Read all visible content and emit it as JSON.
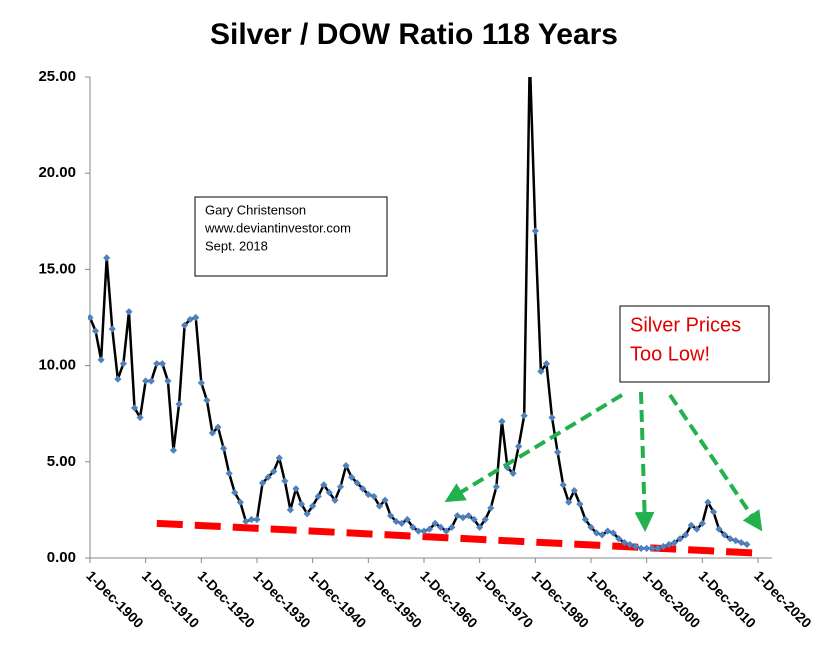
{
  "chart_data": {
    "type": "line",
    "title": "Silver / DOW Ratio 118 Years",
    "x": [
      "1900-12-01",
      "1901-12-01",
      "1902-12-01",
      "1903-12-01",
      "1904-12-01",
      "1905-12-01",
      "1906-12-01",
      "1907-12-01",
      "1908-12-01",
      "1909-12-01",
      "1910-12-01",
      "1911-12-01",
      "1912-12-01",
      "1913-12-01",
      "1914-12-01",
      "1915-12-01",
      "1916-12-01",
      "1917-12-01",
      "1918-12-01",
      "1919-12-01",
      "1920-12-01",
      "1921-12-01",
      "1922-12-01",
      "1923-12-01",
      "1924-12-01",
      "1925-12-01",
      "1926-12-01",
      "1927-12-01",
      "1928-12-01",
      "1929-12-01",
      "1930-12-01",
      "1931-12-01",
      "1932-12-01",
      "1933-12-01",
      "1934-12-01",
      "1935-12-01",
      "1936-12-01",
      "1937-12-01",
      "1938-12-01",
      "1939-12-01",
      "1940-12-01",
      "1941-12-01",
      "1942-12-01",
      "1943-12-01",
      "1944-12-01",
      "1945-12-01",
      "1946-12-01",
      "1947-12-01",
      "1948-12-01",
      "1949-12-01",
      "1950-12-01",
      "1951-12-01",
      "1952-12-01",
      "1953-12-01",
      "1954-12-01",
      "1955-12-01",
      "1956-12-01",
      "1957-12-01",
      "1958-12-01",
      "1959-12-01",
      "1960-12-01",
      "1961-12-01",
      "1962-12-01",
      "1963-12-01",
      "1964-12-01",
      "1965-12-01",
      "1966-12-01",
      "1967-12-01",
      "1968-12-01",
      "1969-12-01",
      "1970-12-01",
      "1971-12-01",
      "1972-12-01",
      "1973-12-01",
      "1974-12-01",
      "1975-12-01",
      "1976-12-01",
      "1977-12-01",
      "1978-12-01",
      "1979-12-01",
      "1980-12-01",
      "1981-12-01",
      "1982-12-01",
      "1983-12-01",
      "1984-12-01",
      "1985-12-01",
      "1986-12-01",
      "1987-12-01",
      "1988-12-01",
      "1989-12-01",
      "1990-12-01",
      "1991-12-01",
      "1992-12-01",
      "1993-12-01",
      "1994-12-01",
      "1995-12-01",
      "1996-12-01",
      "1997-12-01",
      "1998-12-01",
      "1999-12-01",
      "2000-12-01",
      "2001-12-01",
      "2002-12-01",
      "2003-12-01",
      "2004-12-01",
      "2005-12-01",
      "2006-12-01",
      "2007-12-01",
      "2008-12-01",
      "2009-12-01",
      "2010-12-01",
      "2011-12-01",
      "2012-12-01",
      "2013-12-01",
      "2014-12-01",
      "2015-12-01",
      "2016-12-01",
      "2017-12-01",
      "2018-12-01"
    ],
    "series": [
      {
        "color": "#000000",
        "marker_color": "#4f81bd",
        "values": [
          12.5,
          11.8,
          10.3,
          15.6,
          11.9,
          9.3,
          10.1,
          12.8,
          7.8,
          7.3,
          9.2,
          9.2,
          10.1,
          10.1,
          9.2,
          5.6,
          8.0,
          12.1,
          12.4,
          12.5,
          9.1,
          8.2,
          6.5,
          6.8,
          5.7,
          4.4,
          3.4,
          2.9,
          1.9,
          2.0,
          2.0,
          3.9,
          4.2,
          4.5,
          5.2,
          4.0,
          2.5,
          3.6,
          2.8,
          2.3,
          2.7,
          3.2,
          3.8,
          3.4,
          3.0,
          3.7,
          4.8,
          4.2,
          3.9,
          3.6,
          3.3,
          3.2,
          2.7,
          3.0,
          2.2,
          1.9,
          1.8,
          2.0,
          1.6,
          1.4,
          1.4,
          1.5,
          1.8,
          1.6,
          1.4,
          1.6,
          2.2,
          2.1,
          2.2,
          2.0,
          1.6,
          2.0,
          2.6,
          3.7,
          7.1,
          4.7,
          4.4,
          5.8,
          7.4,
          26,
          17.0,
          9.7,
          10.1,
          7.3,
          5.5,
          3.8,
          2.9,
          3.5,
          2.8,
          2.0,
          1.6,
          1.3,
          1.2,
          1.4,
          1.3,
          1.0,
          0.8,
          0.7,
          0.6,
          0.5,
          0.5,
          0.5,
          0.5,
          0.6,
          0.7,
          0.8,
          1.0,
          1.2,
          1.7,
          1.5,
          1.8,
          2.9,
          2.4,
          1.5,
          1.2,
          1.0,
          0.9,
          0.8,
          0.7
        ]
      }
    ],
    "trend_line": {
      "color": "#ff0000",
      "x": [
        "1912-12-01",
        "2020-12-01"
      ],
      "values": [
        1.8,
        0.25
      ]
    },
    "xlim": [
      "1900-12-01",
      "2020-12-01"
    ],
    "xticks": [
      {
        "value": "1900-12-01",
        "label": "1-Dec-1900"
      },
      {
        "value": "1910-12-01",
        "label": "1-Dec-1910"
      },
      {
        "value": "1920-12-01",
        "label": "1-Dec-1920"
      },
      {
        "value": "1930-12-01",
        "label": "1-Dec-1930"
      },
      {
        "value": "1940-12-01",
        "label": "1-Dec-1940"
      },
      {
        "value": "1950-12-01",
        "label": "1-Dec-1950"
      },
      {
        "value": "1960-12-01",
        "label": "1-Dec-1960"
      },
      {
        "value": "1970-12-01",
        "label": "1-Dec-1970"
      },
      {
        "value": "1980-12-01",
        "label": "1-Dec-1980"
      },
      {
        "value": "1990-12-01",
        "label": "1-Dec-1990"
      },
      {
        "value": "2000-12-01",
        "label": "1-Dec-2000"
      },
      {
        "value": "2010-12-01",
        "label": "1-Dec-2010"
      },
      {
        "value": "2020-12-01",
        "label": "1-Dec-2020"
      }
    ],
    "ylim": [
      0,
      25
    ],
    "yticks": [
      {
        "value": 0,
        "label": "0.00"
      },
      {
        "value": 5,
        "label": "5.00"
      },
      {
        "value": 10,
        "label": "10.00"
      },
      {
        "value": 15,
        "label": "15.00"
      },
      {
        "value": 20,
        "label": "20.00"
      },
      {
        "value": 25,
        "label": "25.00"
      }
    ],
    "grid": false,
    "annotations": {
      "credit": [
        "Gary Christenson",
        "www.deviantinvestor.com",
        "Sept. 2018"
      ],
      "callout": [
        "Silver Prices",
        "Too Low!"
      ]
    }
  }
}
